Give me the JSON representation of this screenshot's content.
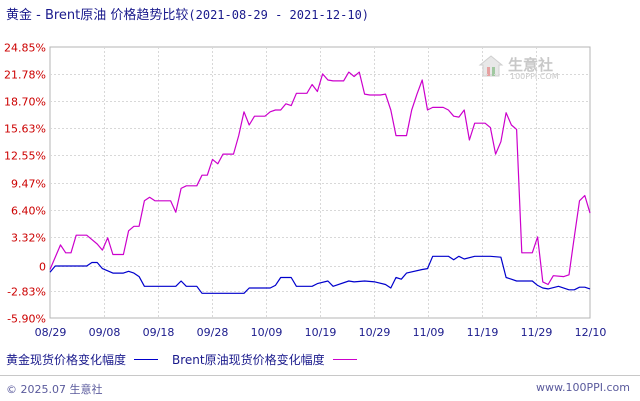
{
  "title": {
    "main": "黄金 - Brent原油 价格趋势比较",
    "dates": "(2021-08-29 - 2021-12-10)"
  },
  "legend": [
    {
      "label": "黄金现货价格变化幅度",
      "color": "#0000cc"
    },
    {
      "label": "Brent原油现货价格变化幅度",
      "color": "#cc00cc"
    }
  ],
  "footer": {
    "copyright": "© 2025.07 生意社",
    "url": "www.100PPI.com"
  },
  "watermark": {
    "text": "生意社",
    "url": "100PPI.COM"
  },
  "chart_data": {
    "type": "line",
    "x_start": "08-29",
    "x_end": "12-10",
    "x_ticks": [
      "08/29",
      "09/08",
      "09/18",
      "09/28",
      "10/09",
      "10/19",
      "10/29",
      "11/09",
      "11/19",
      "11/29",
      "12/10"
    ],
    "y_ticks": [
      "24.85%",
      "21.78%",
      "18.70%",
      "15.63%",
      "12.55%",
      "9.47%",
      "6.40%",
      "3.32%",
      "0",
      "-2.83%",
      "-5.90%"
    ],
    "ylim": [
      -5.9,
      24.85
    ],
    "grid": true,
    "legend_position": "bottom",
    "series": [
      {
        "name": "黄金现货价格变化幅度",
        "color": "#0000cc",
        "points": [
          [
            "08-29",
            -0.7
          ],
          [
            "08-30",
            0.0
          ],
          [
            "09-03",
            0.0
          ],
          [
            "09-05",
            0.0
          ],
          [
            "09-06",
            0.4
          ],
          [
            "09-07",
            0.4
          ],
          [
            "09-08",
            -0.3
          ],
          [
            "09-10",
            -0.8
          ],
          [
            "09-12",
            -0.8
          ],
          [
            "09-13",
            -0.6
          ],
          [
            "09-14",
            -0.8
          ],
          [
            "09-15",
            -1.2
          ],
          [
            "09-16",
            -2.3
          ],
          [
            "09-18",
            -2.3
          ],
          [
            "09-22",
            -2.3
          ],
          [
            "09-23",
            -1.7
          ],
          [
            "09-24",
            -2.3
          ],
          [
            "09-26",
            -2.3
          ],
          [
            "09-27",
            -3.1
          ],
          [
            "09-30",
            -3.1
          ],
          [
            "10-05",
            -3.1
          ],
          [
            "10-06",
            -2.5
          ],
          [
            "10-10",
            -2.5
          ],
          [
            "10-11",
            -2.2
          ],
          [
            "10-12",
            -1.3
          ],
          [
            "10-13",
            -1.3
          ],
          [
            "10-14",
            -1.3
          ],
          [
            "10-15",
            -2.3
          ],
          [
            "10-18",
            -2.3
          ],
          [
            "10-19",
            -2.0
          ],
          [
            "10-21",
            -1.7
          ],
          [
            "10-22",
            -2.3
          ],
          [
            "10-25",
            -1.7
          ],
          [
            "10-26",
            -1.8
          ],
          [
            "10-28",
            -1.7
          ],
          [
            "10-30",
            -1.8
          ],
          [
            "11-01",
            -2.1
          ],
          [
            "11-02",
            -2.5
          ],
          [
            "11-03",
            -1.3
          ],
          [
            "11-04",
            -1.5
          ],
          [
            "11-05",
            -0.8
          ],
          [
            "11-08",
            -0.4
          ],
          [
            "11-09",
            -0.3
          ],
          [
            "11-10",
            1.1
          ],
          [
            "11-13",
            1.1
          ],
          [
            "11-14",
            0.7
          ],
          [
            "11-15",
            1.1
          ],
          [
            "11-16",
            0.8
          ],
          [
            "11-18",
            1.1
          ],
          [
            "11-21",
            1.1
          ],
          [
            "11-23",
            1.0
          ],
          [
            "11-24",
            -1.3
          ],
          [
            "11-25",
            -1.5
          ],
          [
            "11-26",
            -1.7
          ],
          [
            "11-27",
            -1.7
          ],
          [
            "11-29",
            -1.7
          ],
          [
            "11-30",
            -2.2
          ],
          [
            "12-01",
            -2.5
          ],
          [
            "12-02",
            -2.6
          ],
          [
            "12-04",
            -2.3
          ],
          [
            "12-06",
            -2.7
          ],
          [
            "12-07",
            -2.7
          ],
          [
            "12-08",
            -2.4
          ],
          [
            "12-09",
            -2.4
          ],
          [
            "12-10",
            -2.6
          ]
        ]
      },
      {
        "name": "Brent原油现货价格变化幅度",
        "color": "#cc00cc",
        "points": [
          [
            "08-29",
            -0.4
          ],
          [
            "08-31",
            2.4
          ],
          [
            "09-01",
            1.5
          ],
          [
            "09-02",
            1.5
          ],
          [
            "09-03",
            3.5
          ],
          [
            "09-05",
            3.5
          ],
          [
            "09-06",
            3.0
          ],
          [
            "09-07",
            2.5
          ],
          [
            "09-08",
            1.8
          ],
          [
            "09-09",
            3.2
          ],
          [
            "09-10",
            1.3
          ],
          [
            "09-12",
            1.3
          ],
          [
            "09-13",
            4.0
          ],
          [
            "09-14",
            4.5
          ],
          [
            "09-15",
            4.5
          ],
          [
            "09-16",
            7.4
          ],
          [
            "09-17",
            7.8
          ],
          [
            "09-18",
            7.4
          ],
          [
            "09-20",
            7.4
          ],
          [
            "09-21",
            7.4
          ],
          [
            "09-22",
            6.1
          ],
          [
            "09-23",
            8.8
          ],
          [
            "09-24",
            9.1
          ],
          [
            "09-26",
            9.1
          ],
          [
            "09-27",
            10.3
          ],
          [
            "09-28",
            10.3
          ],
          [
            "09-29",
            12.1
          ],
          [
            "09-30",
            11.6
          ],
          [
            "10-01",
            12.7
          ],
          [
            "10-03",
            12.7
          ],
          [
            "10-04",
            14.8
          ],
          [
            "10-05",
            17.5
          ],
          [
            "10-06",
            16.0
          ],
          [
            "10-07",
            17.0
          ],
          [
            "10-09",
            17.0
          ],
          [
            "10-10",
            17.5
          ],
          [
            "10-11",
            17.7
          ],
          [
            "10-12",
            17.7
          ],
          [
            "10-13",
            18.4
          ],
          [
            "10-14",
            18.2
          ],
          [
            "10-15",
            19.6
          ],
          [
            "10-17",
            19.6
          ],
          [
            "10-18",
            20.6
          ],
          [
            "10-19",
            19.8
          ],
          [
            "10-20",
            21.8
          ],
          [
            "10-21",
            21.1
          ],
          [
            "10-22",
            21.0
          ],
          [
            "10-24",
            21.0
          ],
          [
            "10-25",
            22.0
          ],
          [
            "10-26",
            21.5
          ],
          [
            "10-27",
            22.0
          ],
          [
            "10-28",
            19.5
          ],
          [
            "10-29",
            19.4
          ],
          [
            "10-31",
            19.4
          ],
          [
            "11-01",
            19.5
          ],
          [
            "11-02",
            17.7
          ],
          [
            "11-03",
            14.8
          ],
          [
            "11-04",
            14.8
          ],
          [
            "11-05",
            14.8
          ],
          [
            "11-06",
            17.7
          ],
          [
            "11-07",
            19.5
          ],
          [
            "11-08",
            21.1
          ],
          [
            "11-09",
            17.7
          ],
          [
            "11-10",
            18.0
          ],
          [
            "11-12",
            18.0
          ],
          [
            "11-13",
            17.7
          ],
          [
            "11-14",
            17.0
          ],
          [
            "11-15",
            16.9
          ],
          [
            "11-16",
            17.7
          ],
          [
            "11-17",
            14.3
          ],
          [
            "11-18",
            16.2
          ],
          [
            "11-20",
            16.2
          ],
          [
            "11-21",
            15.7
          ],
          [
            "11-22",
            12.7
          ],
          [
            "11-23",
            14.1
          ],
          [
            "11-24",
            17.4
          ],
          [
            "11-25",
            16.0
          ],
          [
            "11-26",
            15.5
          ],
          [
            "11-27",
            1.5
          ],
          [
            "11-29",
            1.5
          ],
          [
            "11-30",
            3.3
          ],
          [
            "12-01",
            -1.8
          ],
          [
            "12-02",
            -2.1
          ],
          [
            "12-03",
            -1.1
          ],
          [
            "12-05",
            -1.2
          ],
          [
            "12-06",
            -1.0
          ],
          [
            "12-07",
            3.3
          ],
          [
            "12-08",
            7.4
          ],
          [
            "12-09",
            8.0
          ],
          [
            "12-10",
            6.0
          ]
        ]
      }
    ]
  }
}
